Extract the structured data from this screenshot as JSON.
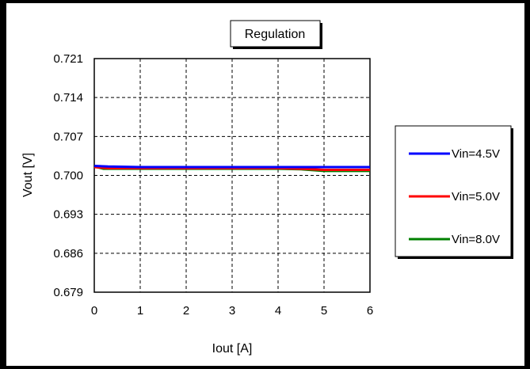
{
  "chart_data": {
    "type": "line",
    "title": "Regulation",
    "xlabel": "Iout [A]",
    "ylabel": "Vout  [V]",
    "xlim": [
      0,
      6
    ],
    "ylim": [
      0.679,
      0.721
    ],
    "x_ticks": [
      "0",
      "1",
      "2",
      "3",
      "4",
      "5",
      "6"
    ],
    "y_ticks": [
      "0.721",
      "0.714",
      "0.707",
      "0.700",
      "0.693",
      "0.686",
      "0.679"
    ],
    "grid": true,
    "legend_position": "right",
    "series": [
      {
        "name": "Vin=4.5V",
        "color": "#0000ff",
        "x": [
          0,
          0.3,
          1,
          2,
          3,
          4,
          5,
          6
        ],
        "y": [
          0.7017,
          0.7016,
          0.7015,
          0.7015,
          0.7015,
          0.7015,
          0.7015,
          0.7015
        ]
      },
      {
        "name": "Vin=5.0V",
        "color": "#ff0000",
        "x": [
          0,
          0.3,
          1,
          2,
          3,
          4,
          4.5,
          5,
          6
        ],
        "y": [
          0.7015,
          0.7013,
          0.7013,
          0.7013,
          0.7013,
          0.7013,
          0.7012,
          0.701,
          0.701
        ]
      },
      {
        "name": "Vin=8.0V",
        "color": "#008000",
        "x": [
          0,
          0.2,
          0.5,
          1,
          2,
          3,
          4,
          4.5,
          5,
          6
        ],
        "y": [
          0.7016,
          0.7012,
          0.7012,
          0.7012,
          0.7012,
          0.7012,
          0.7012,
          0.7011,
          0.7008,
          0.7008
        ]
      }
    ]
  }
}
